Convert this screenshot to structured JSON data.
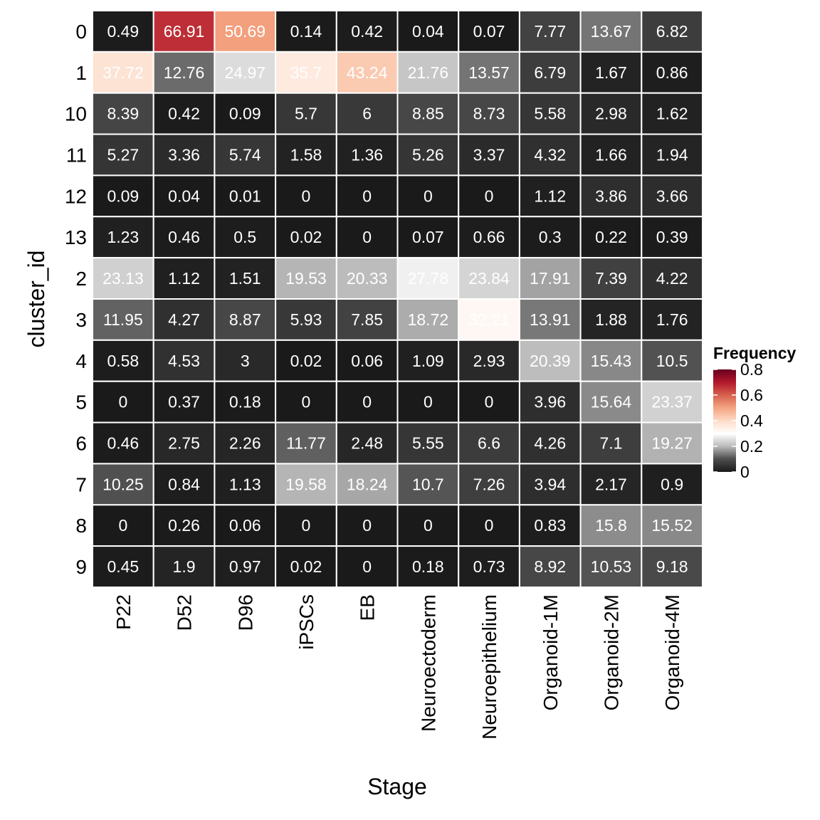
{
  "chart_data": {
    "type": "heatmap",
    "xlabel": "Stage",
    "ylabel": "cluster_id",
    "x_categories": [
      "P22",
      "D52",
      "D96",
      "iPSCs",
      "EB",
      "Neuroectoderm",
      "Neuroepithelium",
      "Organoid-1M",
      "Organoid-2M",
      "Organoid-4M"
    ],
    "y_categories": [
      "0",
      "1",
      "10",
      "11",
      "12",
      "13",
      "2",
      "3",
      "4",
      "5",
      "6",
      "7",
      "8",
      "9"
    ],
    "values": [
      [
        "0.49",
        "66.91",
        "50.69",
        "0.14",
        "0.42",
        "0.04",
        "0.07",
        "7.77",
        "13.67",
        "6.82"
      ],
      [
        "37.72",
        "12.76",
        "24.97",
        "35.7",
        "43.24",
        "21.76",
        "13.57",
        "6.79",
        "1.67",
        "0.86"
      ],
      [
        "8.39",
        "0.42",
        "0.09",
        "5.7",
        "6",
        "8.85",
        "8.73",
        "5.58",
        "2.98",
        "1.62"
      ],
      [
        "5.27",
        "3.36",
        "5.74",
        "1.58",
        "1.36",
        "5.26",
        "3.37",
        "4.32",
        "1.66",
        "1.94"
      ],
      [
        "0.09",
        "0.04",
        "0.01",
        "0",
        "0",
        "0",
        "0",
        "1.12",
        "3.86",
        "3.66"
      ],
      [
        "1.23",
        "0.46",
        "0.5",
        "0.02",
        "0",
        "0.07",
        "0.66",
        "0.3",
        "0.22",
        "0.39"
      ],
      [
        "23.13",
        "1.12",
        "1.51",
        "19.53",
        "20.33",
        "27.78",
        "23.84",
        "17.91",
        "7.39",
        "4.22"
      ],
      [
        "11.95",
        "4.27",
        "8.87",
        "5.93",
        "7.85",
        "18.72",
        "32.21",
        "13.91",
        "1.88",
        "1.76"
      ],
      [
        "0.58",
        "4.53",
        "3",
        "0.02",
        "0.06",
        "1.09",
        "2.93",
        "20.39",
        "15.43",
        "10.5"
      ],
      [
        "0",
        "0.37",
        "0.18",
        "0",
        "0",
        "0",
        "0",
        "3.96",
        "15.64",
        "23.37"
      ],
      [
        "0.46",
        "2.75",
        "2.26",
        "11.77",
        "2.48",
        "5.55",
        "6.6",
        "4.26",
        "7.1",
        "19.27"
      ],
      [
        "10.25",
        "0.84",
        "1.13",
        "19.58",
        "18.24",
        "10.7",
        "7.26",
        "3.94",
        "2.17",
        "0.9"
      ],
      [
        "0",
        "0.26",
        "0.06",
        "0",
        "0",
        "0",
        "0",
        "0.83",
        "15.8",
        "15.52"
      ],
      [
        "0.45",
        "1.9",
        "0.97",
        "0.02",
        "0",
        "0.18",
        "0.73",
        "8.92",
        "10.53",
        "9.18"
      ]
    ],
    "legend": {
      "title": "Frequency",
      "ticks": [
        "0",
        "0.2",
        "0.4",
        "0.6",
        "0.8"
      ],
      "tick_values": [
        0,
        0.2,
        0.4,
        0.6,
        0.8
      ],
      "placement": "right"
    },
    "color_scale": {
      "domain": [
        0,
        0.1,
        0.2,
        0.3,
        0.4,
        0.5,
        0.6,
        0.7,
        0.8
      ],
      "colors": [
        "#1a1a1a",
        "#4d4d4d",
        "#bababa",
        "#ffffff",
        "#fddbc7",
        "#f4a582",
        "#d6604d",
        "#b2182b",
        "#67001f"
      ]
    },
    "cell_border_color": "#ffffff"
  }
}
